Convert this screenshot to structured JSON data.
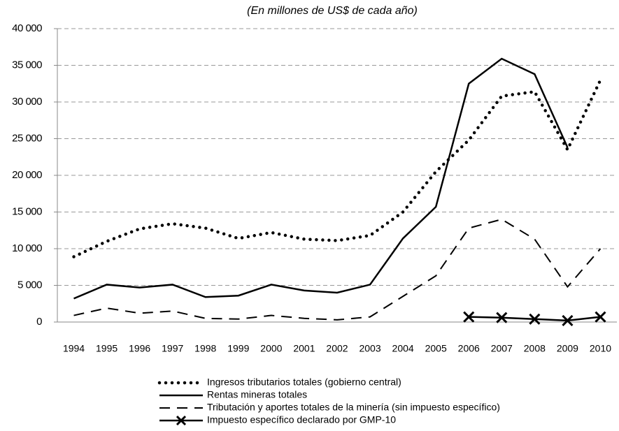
{
  "chart_data": {
    "type": "line",
    "title": "(En millones de US$ de cada año)",
    "categories": [
      "1994",
      "1995",
      "1996",
      "1997",
      "1998",
      "1999",
      "2000",
      "2001",
      "2002",
      "2003",
      "2004",
      "2005",
      "2006",
      "2007",
      "2008",
      "2009",
      "2010"
    ],
    "series": [
      {
        "name": "Ingresos tributarios totales (gobierno central)",
        "color": "#000000",
        "style": "dotted",
        "values": [
          8900,
          11000,
          12700,
          13400,
          12800,
          11400,
          12200,
          11300,
          11100,
          11800,
          15000,
          20500,
          24800,
          30800,
          31400,
          23500,
          33000
        ]
      },
      {
        "name": "Rentas mineras totales",
        "color": "#000000",
        "style": "solid",
        "values": [
          3200,
          5100,
          4700,
          5100,
          3400,
          3600,
          5100,
          4300,
          4000,
          5100,
          11400,
          15700,
          32500,
          35900,
          33800,
          23800,
          null
        ]
      },
      {
        "name": "Tributación y aportes totales de la minería (sin impuesto específico)",
        "color": "#000000",
        "style": "dashed",
        "values": [
          900,
          1900,
          1200,
          1500,
          500,
          400,
          900,
          500,
          300,
          700,
          3500,
          6300,
          12800,
          14000,
          11300,
          4800,
          10000
        ]
      },
      {
        "name": "Impuesto específico declarado por GMP-10",
        "color": "#000000",
        "style": "solid",
        "marker": "x",
        "values": [
          null,
          null,
          null,
          null,
          null,
          null,
          null,
          null,
          null,
          null,
          null,
          null,
          700,
          600,
          400,
          200,
          700
        ]
      }
    ],
    "ylim": [
      0,
      40000
    ],
    "yticks": [
      0,
      {
        "value": 5000,
        "label": "5 000"
      },
      {
        "value": 10000,
        "label": "10 000"
      },
      {
        "value": 15000,
        "label": "15 000"
      },
      {
        "value": 20000,
        "label": "20 000"
      },
      {
        "value": 25000,
        "label": "25 000"
      },
      {
        "value": 30000,
        "label": "30 000"
      },
      {
        "value": 35000,
        "label": "35 000"
      },
      {
        "value": 40000,
        "label": "40 000"
      }
    ],
    "grid": true,
    "legend": "bottom"
  }
}
